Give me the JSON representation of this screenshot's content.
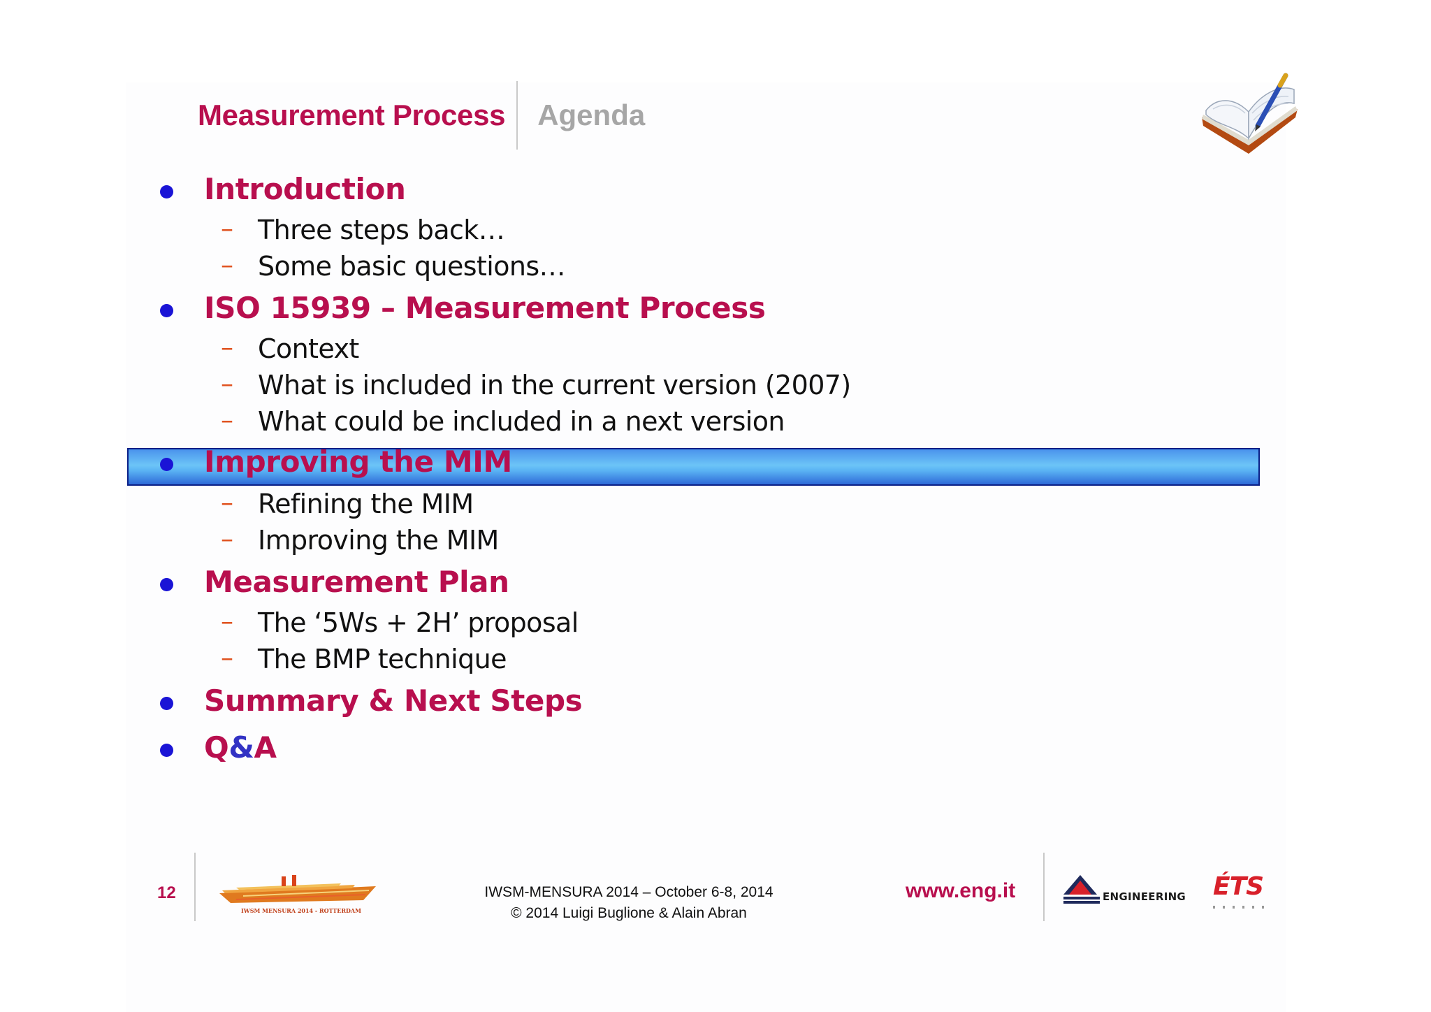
{
  "header": {
    "title": "Measurement Process",
    "subtitle": "Agenda"
  },
  "agenda": {
    "items": [
      {
        "label": "Introduction",
        "subitems": [
          "Three steps back…",
          "Some basic questions…"
        ]
      },
      {
        "label": "ISO 15939 – Measurement Process",
        "subitems": [
          "Context",
          "What is included in the current version (2007)",
          "What could be included in a next version"
        ]
      },
      {
        "label": "Improving the MIM",
        "highlighted": true,
        "subitems": [
          "Refining the MIM",
          "Improving the MIM"
        ]
      },
      {
        "label": "Measurement Plan",
        "subitems": [
          "The ‘5Ws + 2H’ proposal",
          "The BMP technique"
        ]
      },
      {
        "label": "Summary & Next Steps",
        "subitems": []
      },
      {
        "label_parts": [
          "Q",
          "&",
          "A"
        ],
        "subitems": []
      }
    ],
    "dash": "–"
  },
  "footer": {
    "page_number": "12",
    "conference_line": "IWSM-MENSURA 2014 – October 6-8, 2014",
    "copyright_line": "© 2014 Luigi Buglione & Alain Abran",
    "url": "www.eng.it",
    "ship_logo_text": "IWSM MENSURA 2014 - ROTTERDAM",
    "engineering_logo_text": "ENGINEERING",
    "ets_logo_text": "ÉTS"
  },
  "colors": {
    "accent": "#b80f4e",
    "bullet": "#1a14d6",
    "dash": "#e0521f",
    "highlight": "#6cc4f7",
    "subtitle_gray": "#a6a6a6"
  },
  "icons": {
    "header_icon": "open-book-with-pen-icon"
  }
}
